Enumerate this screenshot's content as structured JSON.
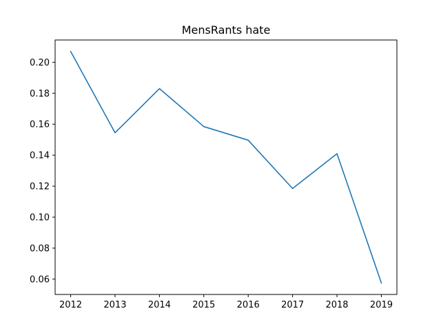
{
  "chart_data": {
    "type": "line",
    "title": "MensRants hate",
    "xlabel": "",
    "ylabel": "",
    "x": [
      2012,
      2013,
      2014,
      2015,
      2016,
      2017,
      2018,
      2019
    ],
    "x_tick_labels": [
      "2012",
      "2013",
      "2014",
      "2015",
      "2016",
      "2017",
      "2018",
      "2019"
    ],
    "series": [
      {
        "values": [
          0.207,
          0.1545,
          0.183,
          0.1585,
          0.1497,
          0.1185,
          0.141,
          0.0575
        ]
      }
    ],
    "y_ticks": [
      0.06,
      0.08,
      0.1,
      0.12,
      0.14,
      0.16,
      0.18,
      0.2
    ],
    "y_tick_labels": [
      "0.06",
      "0.08",
      "0.10",
      "0.12",
      "0.14",
      "0.16",
      "0.18",
      "0.20"
    ],
    "xlim": [
      2011.65,
      2019.35
    ],
    "ylim": [
      0.0501,
      0.2144
    ],
    "grid": false,
    "legend": "none",
    "line_color": "#1f77b4"
  }
}
